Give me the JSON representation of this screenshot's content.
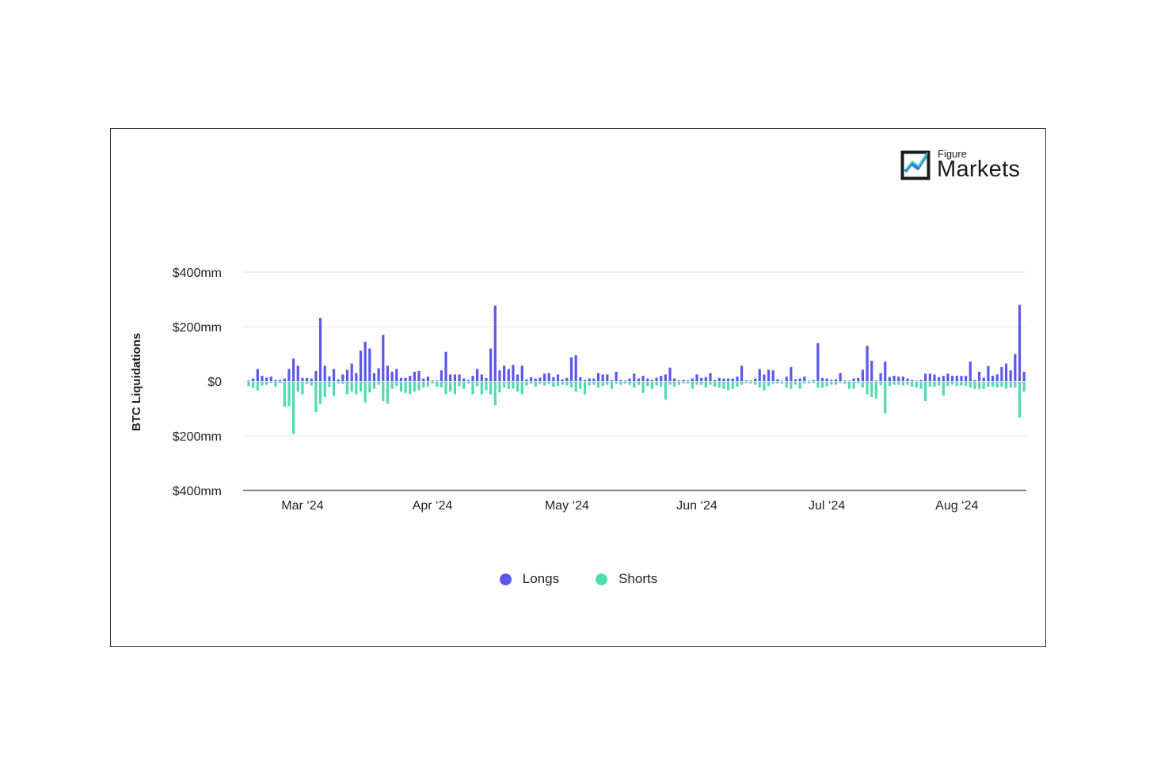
{
  "brand": {
    "line1": "Figure",
    "line2": "Markets",
    "icon": "trend-chart-logo-icon"
  },
  "colors": {
    "longs": "#5b57ee",
    "shorts": "#4fdbb0",
    "grid": "#e6e6e6",
    "axis": "#333333",
    "text": "#222222"
  },
  "chart_data": {
    "type": "bar",
    "title": "",
    "ylabel": "BTC Liquidations",
    "ylim": [
      -400,
      400
    ],
    "yticks": [
      400,
      200,
      0,
      -200,
      -400
    ],
    "ytick_labels": [
      "$400mm",
      "$200mm",
      "$0",
      "$200mm",
      "$400mm"
    ],
    "xtick_labels": [
      "Mar ‘24",
      "Apr ‘24",
      "May ‘24",
      "Jun ‘24",
      "Jul ‘24",
      "Aug ‘24"
    ],
    "xtick_index": [
      12,
      41,
      71,
      100,
      129,
      158
    ],
    "grid": true,
    "legend": "bottom-center",
    "series": [
      {
        "name": "Longs",
        "values": [
          3,
          10,
          45,
          20,
          13,
          17,
          5,
          5,
          10,
          45,
          83,
          57,
          12,
          12,
          10,
          38,
          232,
          57,
          18,
          45,
          7,
          25,
          42,
          65,
          30,
          112,
          145,
          120,
          30,
          48,
          170,
          57,
          35,
          45,
          12,
          13,
          20,
          35,
          38,
          10,
          17,
          3,
          3,
          40,
          108,
          25,
          25,
          25,
          10,
          5,
          20,
          45,
          25,
          12,
          120,
          277,
          40,
          57,
          45,
          60,
          25,
          57,
          7,
          15,
          10,
          13,
          28,
          30,
          15,
          25,
          7,
          12,
          88,
          95,
          15,
          5,
          10,
          10,
          30,
          25,
          25,
          5,
          35,
          5,
          3,
          10,
          28,
          10,
          20,
          10,
          5,
          13,
          20,
          25,
          50,
          10,
          3,
          5,
          3,
          10,
          25,
          12,
          15,
          30,
          5,
          12,
          10,
          10,
          10,
          17,
          57,
          3,
          3,
          10,
          45,
          25,
          42,
          40,
          7,
          2,
          17,
          52,
          7,
          10,
          17,
          2,
          5,
          140,
          12,
          10,
          5,
          7,
          30,
          3,
          2,
          10,
          12,
          42,
          130,
          75,
          3,
          30,
          72,
          15,
          20,
          17,
          17,
          10,
          5,
          2,
          5,
          28,
          28,
          25,
          15,
          20,
          28,
          20,
          20,
          20,
          20,
          72,
          5,
          35,
          13,
          55,
          20,
          25,
          52,
          65,
          40,
          100,
          280,
          35
        ]
      },
      {
        "name": "Shorts",
        "values": [
          15,
          22,
          30,
          13,
          10,
          3,
          17,
          3,
          90,
          88,
          190,
          35,
          45,
          7,
          13,
          110,
          80,
          55,
          18,
          50,
          5,
          7,
          45,
          35,
          45,
          35,
          75,
          38,
          25,
          10,
          70,
          80,
          25,
          15,
          35,
          40,
          45,
          35,
          30,
          20,
          17,
          5,
          17,
          20,
          45,
          35,
          45,
          15,
          25,
          5,
          45,
          15,
          45,
          30,
          45,
          85,
          38,
          20,
          25,
          25,
          35,
          45,
          13,
          7,
          17,
          7,
          13,
          7,
          17,
          15,
          10,
          13,
          20,
          35,
          25,
          45,
          13,
          10,
          20,
          15,
          10,
          25,
          7,
          10,
          5,
          10,
          20,
          10,
          40,
          15,
          25,
          13,
          17,
          65,
          10,
          17,
          10,
          5,
          5,
          25,
          10,
          10,
          20,
          10,
          17,
          20,
          25,
          30,
          25,
          17,
          10,
          3,
          5,
          10,
          20,
          30,
          15,
          7,
          5,
          5,
          20,
          25,
          10,
          25,
          5,
          5,
          3,
          20,
          20,
          15,
          10,
          10,
          3,
          7,
          25,
          25,
          5,
          20,
          45,
          55,
          60,
          12,
          115,
          15,
          10,
          10,
          13,
          10,
          17,
          20,
          25,
          70,
          17,
          17,
          13,
          50,
          15,
          10,
          15,
          13,
          15,
          20,
          25,
          25,
          25,
          17,
          17,
          20,
          17,
          25,
          20,
          20,
          130,
          35
        ]
      }
    ]
  }
}
